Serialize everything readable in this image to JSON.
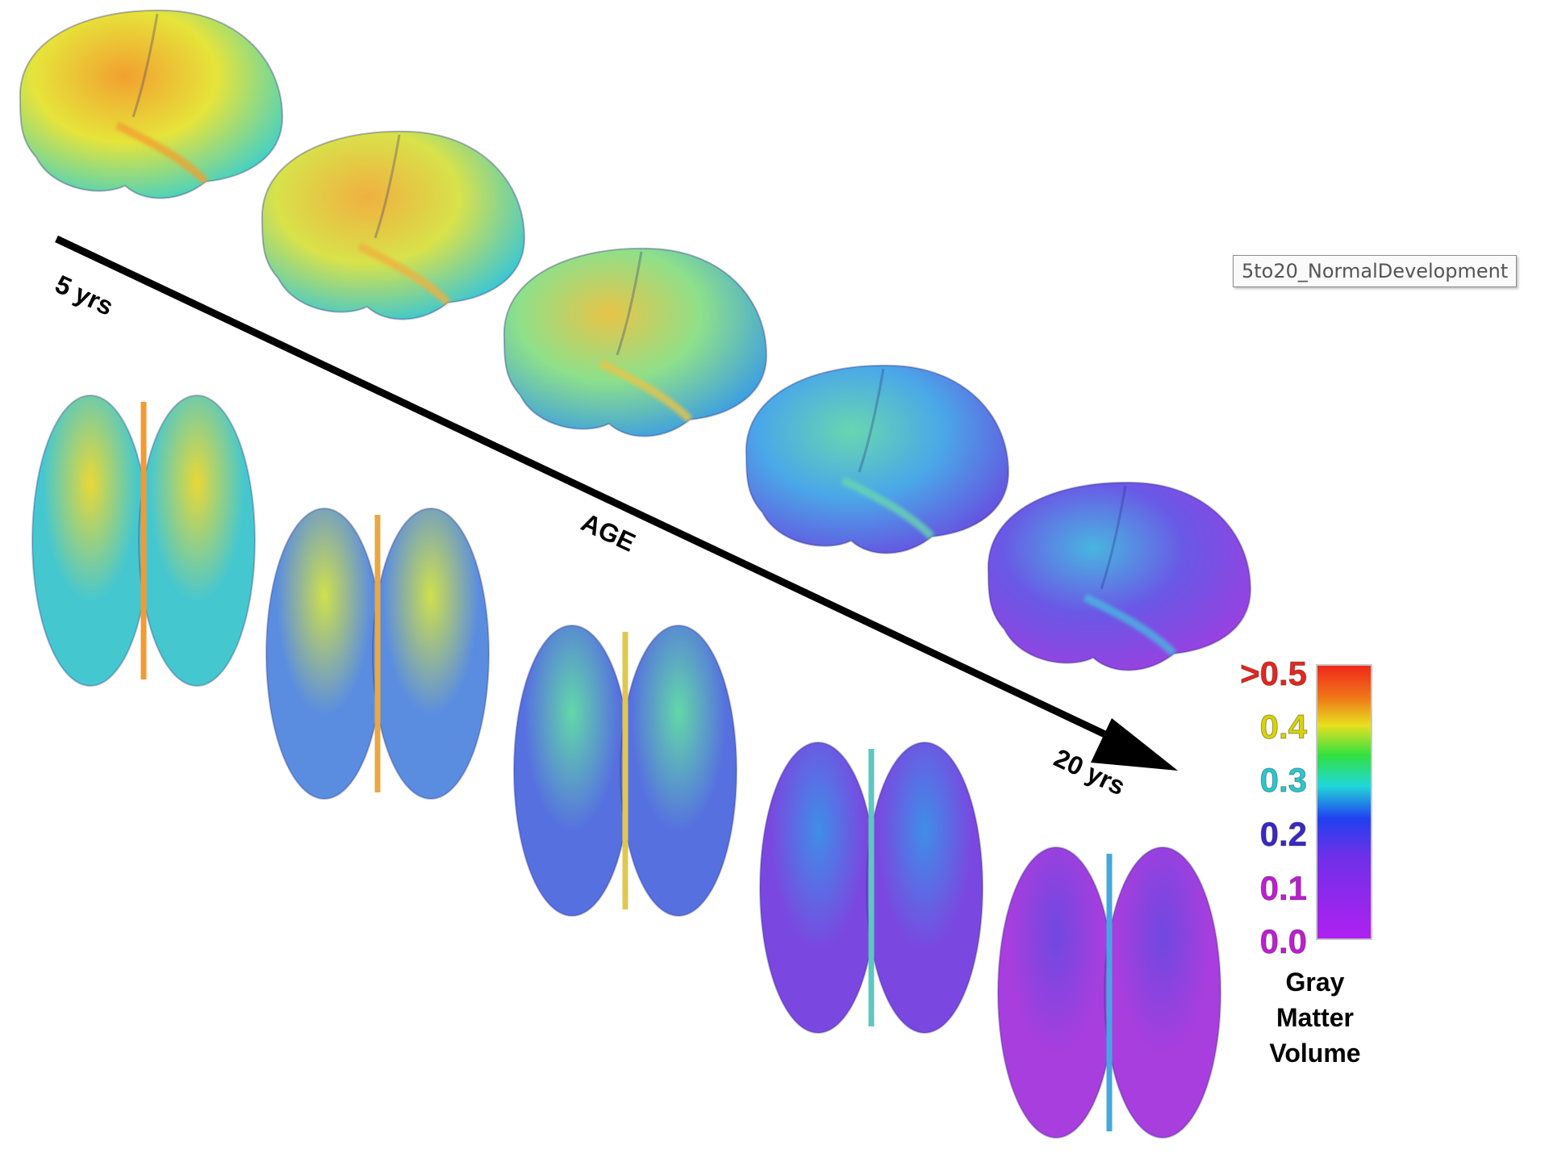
{
  "label_box": "5to20_NormalDevelopment",
  "axis": {
    "start_label": "5 yrs",
    "end_label": "20 yrs",
    "title": "AGE"
  },
  "scale": {
    "ticks": [
      ">0.5",
      "0.4",
      "0.3",
      "0.2",
      "0.1",
      "0.0"
    ],
    "tick_colors": [
      "#e8251e",
      "#d8d400",
      "#27c9cf",
      "#3a28c8",
      "#c21cd6",
      "#c21cd6"
    ],
    "title_lines": [
      "Gray",
      "Matter",
      "Volume"
    ]
  },
  "stages": [
    {
      "age_index": 1,
      "lateral_colors": [
        "#e6e43a",
        "#f2a030",
        "#3fd0c8"
      ],
      "dorsal_colors": [
        "#e9d836",
        "#f29a34",
        "#45c7d0"
      ]
    },
    {
      "age_index": 2,
      "lateral_colors": [
        "#d8e24a",
        "#f0b040",
        "#35c6d8"
      ],
      "dorsal_colors": [
        "#cfe04c",
        "#e8a844",
        "#5a8de0"
      ]
    },
    {
      "age_index": 3,
      "lateral_colors": [
        "#8ee08a",
        "#e8c448",
        "#3a9ce4"
      ],
      "dorsal_colors": [
        "#62d8a8",
        "#e0c850",
        "#5670e0"
      ]
    },
    {
      "age_index": 4,
      "lateral_colors": [
        "#4aa8e8",
        "#68d6b0",
        "#6650e0"
      ],
      "dorsal_colors": [
        "#3f8ee8",
        "#5cc8c0",
        "#7a48e0"
      ]
    },
    {
      "age_index": 5,
      "lateral_colors": [
        "#6a58e6",
        "#48b6e0",
        "#9a40e0"
      ],
      "dorsal_colors": [
        "#7048e0",
        "#44a8e0",
        "#a83ede"
      ]
    }
  ]
}
